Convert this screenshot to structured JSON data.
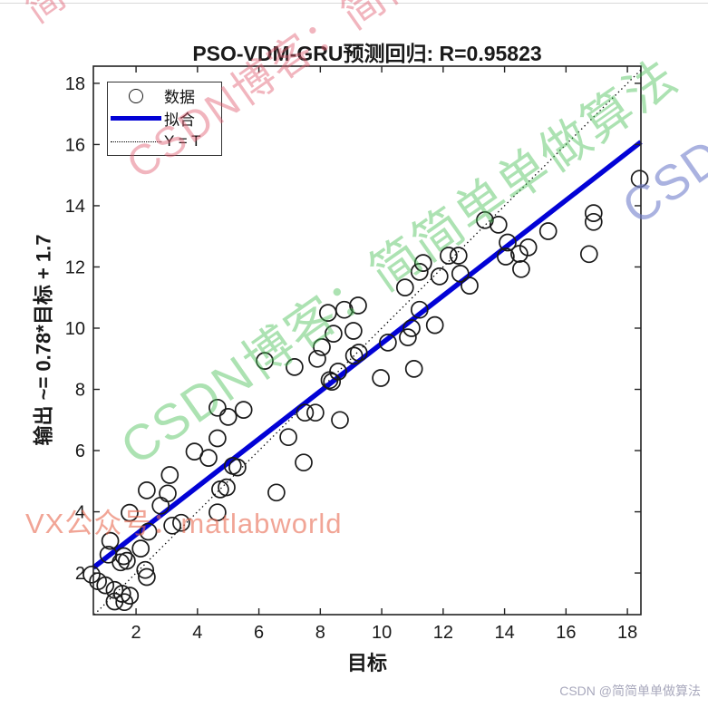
{
  "watermarks": {
    "csdn_blog": "CSDN博客：简简单单做算法",
    "fragment": "简",
    "vx": "VX公众号：matlabworld",
    "credit": "CSDN @简简单单做算法"
  },
  "chart_data": {
    "type": "scatter",
    "title": "PSO-VDM-GRU预测回归: R=0.95823",
    "xlabel": "目标",
    "ylabel": "输出 ~= 0.78*目标 + 1.7",
    "r_value": "0.95823",
    "xlim": [
      0.61,
      18.44
    ],
    "ylim": [
      0.64,
      18.56
    ],
    "x_ticks": [
      2,
      4,
      6,
      8,
      10,
      12,
      14,
      16,
      18
    ],
    "y_ticks": [
      2,
      4,
      6,
      8,
      10,
      12,
      14,
      16,
      18
    ],
    "grid": false,
    "legend_position": "top-left",
    "legend": [
      {
        "label": "数据",
        "type": "circle-marker"
      },
      {
        "label": "拟合",
        "type": "solid-line"
      },
      {
        "label": "Y = T",
        "type": "dotted-line"
      }
    ],
    "fit_line": {
      "slope": 0.78,
      "intercept": 1.7,
      "color": "#0202D6",
      "width": 5.5
    },
    "identity_line": {
      "style": "dotted",
      "color": "#000000"
    },
    "marker": {
      "shape": "circle",
      "edge_color": "#1a1a1a",
      "fill": "none",
      "radius_px": 9
    },
    "axis_color": "#222222",
    "points": [
      [
        0.55,
        1.95
      ],
      [
        0.76,
        1.73
      ],
      [
        1.0,
        1.6
      ],
      [
        1.3,
        1.45
      ],
      [
        1.55,
        1.32
      ],
      [
        1.8,
        1.26
      ],
      [
        1.3,
        1.07
      ],
      [
        1.62,
        1.05
      ],
      [
        1.1,
        2.6
      ],
      [
        1.16,
        3.05
      ],
      [
        1.5,
        2.35
      ],
      [
        1.6,
        2.55
      ],
      [
        1.7,
        2.4
      ],
      [
        2.15,
        2.8
      ],
      [
        2.3,
        2.1
      ],
      [
        2.35,
        1.87
      ],
      [
        1.79,
        3.97
      ],
      [
        2.35,
        4.7
      ],
      [
        2.4,
        3.35
      ],
      [
        2.8,
        4.2
      ],
      [
        3.03,
        4.6
      ],
      [
        3.1,
        5.2
      ],
      [
        3.18,
        3.55
      ],
      [
        3.47,
        3.64
      ],
      [
        3.9,
        5.97
      ],
      [
        4.36,
        5.76
      ],
      [
        4.65,
        6.4
      ],
      [
        4.65,
        3.98
      ],
      [
        4.74,
        4.73
      ],
      [
        4.95,
        4.8
      ],
      [
        5.15,
        5.5
      ],
      [
        5.3,
        5.45
      ],
      [
        6.57,
        4.63
      ],
      [
        7.46,
        5.61
      ],
      [
        6.96,
        6.44
      ],
      [
        4.65,
        7.4
      ],
      [
        5.0,
        7.1
      ],
      [
        5.5,
        7.33
      ],
      [
        6.19,
        8.93
      ],
      [
        7.16,
        8.73
      ],
      [
        7.5,
        7.24
      ],
      [
        7.84,
        7.24
      ],
      [
        8.64,
        7.0
      ],
      [
        8.3,
        8.3
      ],
      [
        8.38,
        8.25
      ],
      [
        8.58,
        8.58
      ],
      [
        7.9,
        9.0
      ],
      [
        8.05,
        9.38
      ],
      [
        8.43,
        9.82
      ],
      [
        9.08,
        9.91
      ],
      [
        9.1,
        9.1
      ],
      [
        9.25,
        9.2
      ],
      [
        8.25,
        10.5
      ],
      [
        8.78,
        10.6
      ],
      [
        9.23,
        10.74
      ],
      [
        9.97,
        8.37
      ],
      [
        11.05,
        8.67
      ],
      [
        10.2,
        9.53
      ],
      [
        10.85,
        9.7
      ],
      [
        10.97,
        10.0
      ],
      [
        11.23,
        10.6
      ],
      [
        11.73,
        10.1
      ],
      [
        10.76,
        11.33
      ],
      [
        11.35,
        12.13
      ],
      [
        11.23,
        11.84
      ],
      [
        11.88,
        11.69
      ],
      [
        12.18,
        12.37
      ],
      [
        12.5,
        12.37
      ],
      [
        12.56,
        11.78
      ],
      [
        12.86,
        11.39
      ],
      [
        13.36,
        13.53
      ],
      [
        13.8,
        13.38
      ],
      [
        14.04,
        12.34
      ],
      [
        14.1,
        12.8
      ],
      [
        14.48,
        12.43
      ],
      [
        14.54,
        11.93
      ],
      [
        14.77,
        12.64
      ],
      [
        15.42,
        13.17
      ],
      [
        16.9,
        13.76
      ],
      [
        16.9,
        13.47
      ],
      [
        16.75,
        12.42
      ],
      [
        18.4,
        14.88
      ]
    ]
  }
}
